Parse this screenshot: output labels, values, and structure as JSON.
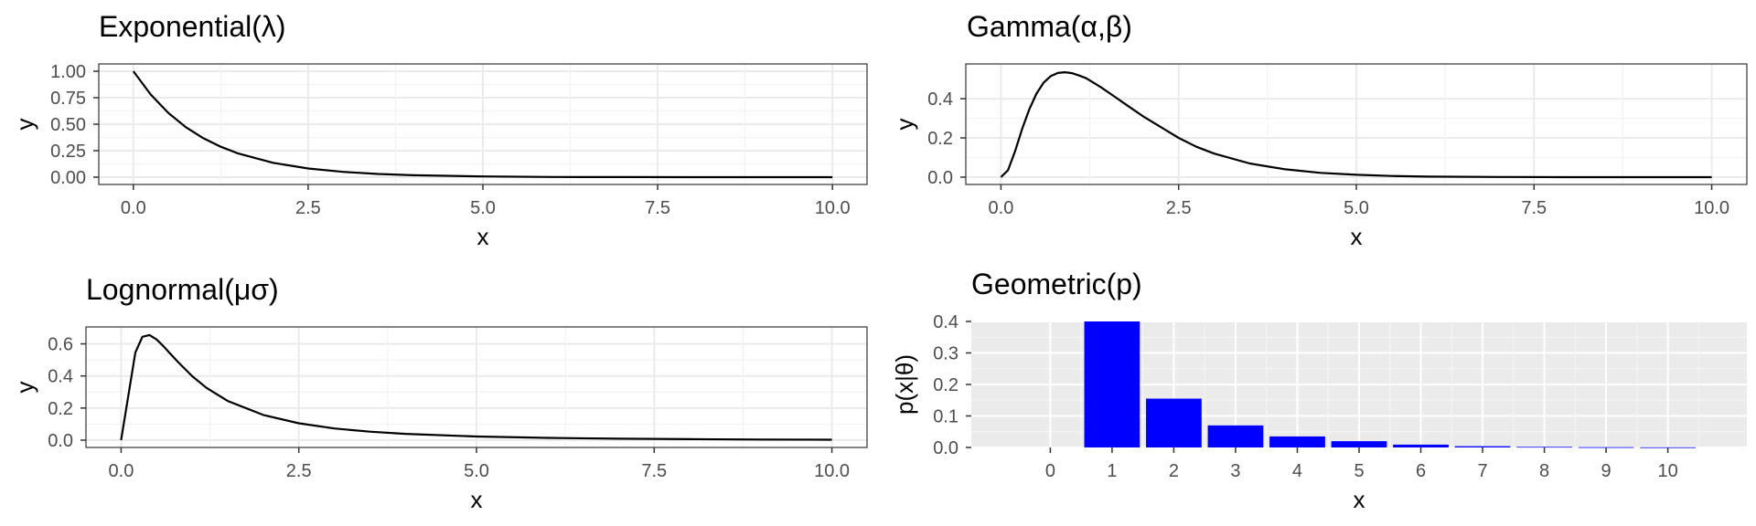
{
  "chart_data": [
    {
      "type": "line",
      "title": "Exponential(λ)",
      "xlabel": "x",
      "ylabel": "y",
      "xlim": [
        0,
        10
      ],
      "ylim": [
        0,
        1
      ],
      "x_ticks": [
        "0.0",
        "2.5",
        "5.0",
        "7.5",
        "10.0"
      ],
      "y_ticks": [
        "0.00",
        "0.25",
        "0.50",
        "0.75",
        "1.00"
      ],
      "grid": true,
      "x": [
        0,
        0.25,
        0.5,
        0.75,
        1,
        1.25,
        1.5,
        2,
        2.5,
        3,
        3.5,
        4,
        5,
        6,
        7,
        8,
        9,
        10
      ],
      "y": [
        1.0,
        0.779,
        0.607,
        0.472,
        0.368,
        0.287,
        0.223,
        0.135,
        0.082,
        0.05,
        0.03,
        0.018,
        0.007,
        0.002,
        0.001,
        0.0,
        0.0,
        0.0
      ]
    },
    {
      "type": "line",
      "title": "Gamma(α,β)",
      "xlabel": "x",
      "ylabel": "y",
      "xlim": [
        0,
        10
      ],
      "ylim": [
        0,
        0.54
      ],
      "x_ticks": [
        "0.0",
        "2.5",
        "5.0",
        "7.5",
        "10.0"
      ],
      "y_ticks": [
        "0.0",
        "0.2",
        "0.4"
      ],
      "grid": true,
      "x": [
        0,
        0.1,
        0.2,
        0.3,
        0.4,
        0.5,
        0.6,
        0.7,
        0.8,
        0.9,
        1,
        1.1,
        1.2,
        1.4,
        1.6,
        1.8,
        2,
        2.25,
        2.5,
        2.75,
        3,
        3.5,
        4,
        4.5,
        5,
        5.5,
        6,
        7,
        8,
        9,
        10
      ],
      "y": [
        0,
        0.036,
        0.134,
        0.247,
        0.347,
        0.426,
        0.482,
        0.515,
        0.531,
        0.535,
        0.53,
        0.518,
        0.504,
        0.46,
        0.41,
        0.36,
        0.31,
        0.255,
        0.2,
        0.155,
        0.12,
        0.07,
        0.04,
        0.022,
        0.012,
        0.006,
        0.003,
        0.001,
        0.0,
        0.0,
        0.0
      ]
    },
    {
      "type": "line",
      "title": "Lognormal(μσ)",
      "xlabel": "x",
      "ylabel": "y",
      "xlim": [
        0,
        10
      ],
      "ylim": [
        0,
        0.66
      ],
      "x_ticks": [
        "0.0",
        "2.5",
        "5.0",
        "7.5",
        "10.0"
      ],
      "y_ticks": [
        "0.0",
        "0.2",
        "0.4",
        "0.6"
      ],
      "grid": true,
      "x": [
        0,
        0.2,
        0.3,
        0.4,
        0.5,
        0.6,
        0.7,
        0.8,
        1,
        1.2,
        1.5,
        2,
        2.5,
        3,
        3.5,
        4,
        5,
        6,
        7,
        8,
        9,
        10
      ],
      "y": [
        0,
        0.546,
        0.644,
        0.655,
        0.627,
        0.583,
        0.535,
        0.487,
        0.399,
        0.326,
        0.244,
        0.157,
        0.105,
        0.073,
        0.053,
        0.039,
        0.023,
        0.014,
        0.009,
        0.006,
        0.004,
        0.003
      ]
    },
    {
      "type": "bar",
      "title": "Geometric(p)",
      "xlabel": "x",
      "ylabel": "p(x|θ)",
      "ylim": [
        0,
        0.4
      ],
      "y_ticks": [
        "0.0",
        "0.1",
        "0.2",
        "0.3",
        "0.4"
      ],
      "categories": [
        "0",
        "1",
        "2",
        "3",
        "4",
        "5",
        "6",
        "7",
        "8",
        "9",
        "10"
      ],
      "values": [
        0,
        0.4,
        0.155,
        0.07,
        0.035,
        0.02,
        0.009,
        0.004,
        0.002,
        0.001,
        0.0005
      ],
      "bar_color": "#0000ff",
      "panel_background": "#ebebeb",
      "grid": true
    }
  ]
}
